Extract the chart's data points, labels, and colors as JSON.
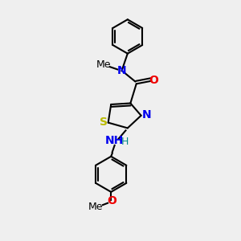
{
  "background_color": "#efefef",
  "bond_color": "#000000",
  "figsize": [
    3.0,
    3.0
  ],
  "dpi": 100,
  "atoms": {
    "S": {
      "color": "#bbbb00",
      "fontsize": 10
    },
    "N": {
      "color": "#0000ee",
      "fontsize": 10
    },
    "O": {
      "color": "#ee0000",
      "fontsize": 10
    },
    "H": {
      "color": "#008888",
      "fontsize": 9
    },
    "Me": {
      "color": "#000000",
      "fontsize": 9
    }
  },
  "lw": 1.5,
  "xlim": [
    0,
    10
  ],
  "ylim": [
    0,
    10
  ]
}
